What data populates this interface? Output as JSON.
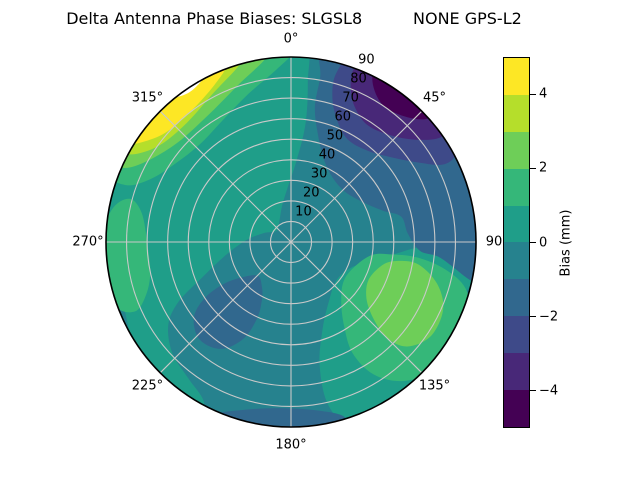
{
  "title": "Delta Antenna Phase Biases: SLGSL8          NONE GPS-L2",
  "polar": {
    "theta_labels": [
      {
        "label": "0°",
        "az": 0
      },
      {
        "label": "45°",
        "az": 45
      },
      {
        "label": "90",
        "az": 90
      },
      {
        "label": "135°",
        "az": 135
      },
      {
        "label": "180°",
        "az": 180
      },
      {
        "label": "225°",
        "az": 225
      },
      {
        "label": "270°",
        "az": 270
      },
      {
        "label": "315°",
        "az": 315
      }
    ],
    "r_labels": [
      "10",
      "20",
      "30",
      "40",
      "50",
      "60",
      "70",
      "80",
      "90"
    ],
    "r_label_angle_deg": 22.5,
    "r_max": 90,
    "grid_color": "#c9c9c9",
    "outline_color": "#000000"
  },
  "colorbar": {
    "label": "Bias (mm)",
    "vmin": -5,
    "vmax": 5,
    "ticks": [
      {
        "value": 4,
        "label": "4"
      },
      {
        "value": 2,
        "label": "2"
      },
      {
        "value": 0,
        "label": "0"
      },
      {
        "value": -2,
        "label": "−2"
      },
      {
        "value": -4,
        "label": "−4"
      }
    ],
    "segment_colors_top_to_bottom": [
      "#fde725",
      "#b5de2b",
      "#6ece58",
      "#35b779",
      "#1f9e89",
      "#26828e",
      "#31688e",
      "#3e4a89",
      "#482878",
      "#440154"
    ]
  },
  "chart_data": {
    "type": "heatmap",
    "projection": "polar-contourf",
    "title": "Delta Antenna Phase Biases: SLGSL8          NONE GPS-L2",
    "value_label": "Bias (mm)",
    "azimuth_deg_clockwise_from_north": true,
    "zenith_range": [
      0,
      90
    ],
    "levels_mm": [
      -5,
      -4,
      -3,
      -2,
      -1,
      0,
      1,
      2,
      3,
      4,
      5
    ],
    "band_colors": {
      "-5..-4": "#440154",
      "-4..-3": "#482878",
      "-3..-2": "#3e4a89",
      "-2..-1": "#31688e",
      "-1..0": "#26828e",
      "0..1": "#1f9e89",
      "1..2": "#35b779",
      "2..3": "#6ece58",
      "3..4": "#b5de2b",
      "4..5": "#fde725",
      "above_max": "#ffffff"
    },
    "background_band": {
      "band": "-1..0",
      "color": "#26828e"
    },
    "features": [
      {
        "name": "nw-positive-lobe-0to1",
        "band": "0..1",
        "color": "#1f9e89",
        "points": [
          [
            207,
            96
          ],
          [
            222,
            96
          ],
          [
            238,
            96
          ],
          [
            254,
            96
          ],
          [
            270,
            96
          ],
          [
            286,
            96
          ],
          [
            302,
            96
          ],
          [
            318,
            96
          ],
          [
            334,
            96
          ],
          [
            350,
            96
          ],
          [
            364,
            96
          ],
          [
            366,
            78
          ],
          [
            367,
            58
          ],
          [
            364,
            40
          ],
          [
            356,
            26
          ],
          [
            346,
            18
          ],
          [
            328,
            11
          ],
          [
            306,
            9
          ],
          [
            288,
            14
          ],
          [
            272,
            22
          ],
          [
            258,
            33
          ],
          [
            248,
            47
          ],
          [
            242,
            62
          ],
          [
            236,
            72
          ],
          [
            227,
            79
          ],
          [
            217,
            83
          ],
          [
            209,
            88
          ]
        ]
      },
      {
        "name": "se-positive-lobe-0to1",
        "band": "0..1",
        "color": "#1f9e89",
        "points": [
          [
            104,
            96
          ],
          [
            118,
            96
          ],
          [
            132,
            96
          ],
          [
            147,
            96
          ],
          [
            161,
            96
          ],
          [
            167,
            82
          ],
          [
            167,
            62
          ],
          [
            160,
            45
          ],
          [
            147,
            34
          ],
          [
            131,
            29
          ],
          [
            115,
            31
          ],
          [
            104,
            39
          ],
          [
            96,
            52
          ],
          [
            92,
            66
          ],
          [
            95,
            81
          ]
        ]
      },
      {
        "name": "w-rim-sliver-m1to0",
        "band": "-1..0",
        "color": "#26828e",
        "points": [
          [
            238,
            98
          ],
          [
            250,
            98
          ],
          [
            262,
            98
          ],
          [
            273,
            98
          ],
          [
            272,
            91
          ],
          [
            262,
            87
          ],
          [
            250,
            87
          ],
          [
            240,
            91
          ]
        ]
      },
      {
        "name": "e-rim-sliver-m1to0",
        "band": "-1..0",
        "color": "#26828e",
        "points": [
          [
            102,
            98
          ],
          [
            109,
            98
          ],
          [
            117,
            98
          ],
          [
            115,
            91
          ],
          [
            108,
            88
          ],
          [
            102,
            92
          ]
        ]
      },
      {
        "name": "w-rim-band-1to2",
        "band": "1..2",
        "color": "#35b779",
        "points": [
          [
            250,
            91
          ],
          [
            261,
            93
          ],
          [
            272,
            92
          ],
          [
            281,
            88
          ],
          [
            285,
            81
          ],
          [
            281,
            74
          ],
          [
            270,
            70
          ],
          [
            258,
            70
          ],
          [
            250,
            75
          ],
          [
            246,
            83
          ]
        ]
      },
      {
        "name": "nw-crescent-1to2",
        "band": "1..2",
        "color": "#35b779",
        "points": [
          [
            291,
            97
          ],
          [
            304,
            97
          ],
          [
            318,
            97
          ],
          [
            332,
            97
          ],
          [
            346,
            97
          ],
          [
            358,
            97
          ],
          [
            361,
            93
          ],
          [
            355,
            84
          ],
          [
            344,
            75
          ],
          [
            331,
            68
          ],
          [
            317,
            65
          ],
          [
            304,
            68
          ],
          [
            294,
            75
          ],
          [
            289,
            85
          ]
        ]
      },
      {
        "name": "se-ring-1to2",
        "band": "1..2",
        "color": "#35b779",
        "points": [
          [
            99,
            40
          ],
          [
            112,
            33
          ],
          [
            127,
            32
          ],
          [
            140,
            38
          ],
          [
            148,
            49
          ],
          [
            151,
            62
          ],
          [
            148,
            76
          ],
          [
            141,
            87
          ],
          [
            131,
            95
          ],
          [
            124,
            97
          ],
          [
            114,
            96
          ],
          [
            105,
            88
          ],
          [
            100,
            76
          ],
          [
            97,
            62
          ],
          [
            97,
            50
          ]
        ]
      },
      {
        "name": "nw-crescent-2to3",
        "band": "2..3",
        "color": "#6ece58",
        "points": [
          [
            298,
            97
          ],
          [
            312,
            97
          ],
          [
            326,
            97
          ],
          [
            340,
            97
          ],
          [
            354,
            97
          ],
          [
            352,
            90
          ],
          [
            342,
            81
          ],
          [
            328,
            74
          ],
          [
            313,
            73
          ],
          [
            302,
            78
          ],
          [
            295,
            86
          ],
          [
            294,
            92
          ]
        ]
      },
      {
        "name": "se-blob-2to3",
        "band": "2..3",
        "color": "#6ece58",
        "points": [
          [
            104,
            46
          ],
          [
            116,
            42
          ],
          [
            127,
            46
          ],
          [
            133,
            55
          ],
          [
            135,
            66
          ],
          [
            132,
            76
          ],
          [
            124,
            82
          ],
          [
            114,
            81
          ],
          [
            106,
            74
          ],
          [
            100,
            63
          ],
          [
            100,
            53
          ]
        ]
      },
      {
        "name": "nw-crescent-3to4",
        "band": "3..4",
        "color": "#b5de2b",
        "points": [
          [
            301,
            98
          ],
          [
            313,
            98
          ],
          [
            325,
            98
          ],
          [
            337,
            98
          ],
          [
            348,
            98
          ],
          [
            344,
            90
          ],
          [
            333,
            82
          ],
          [
            319,
            77
          ],
          [
            307,
            79
          ],
          [
            300,
            86
          ],
          [
            298,
            93
          ]
        ]
      },
      {
        "name": "nw-crescent-4to5",
        "band": "4..5",
        "color": "#fde725",
        "points": [
          [
            303,
            98
          ],
          [
            314,
            98
          ],
          [
            326,
            98
          ],
          [
            338,
            98
          ],
          [
            341,
            93
          ],
          [
            334,
            85
          ],
          [
            322,
            80
          ],
          [
            311,
            81
          ],
          [
            304,
            87
          ],
          [
            301,
            93
          ]
        ]
      },
      {
        "name": "nw-above-max-wedge",
        "band": "above_max",
        "color": "#ffffff",
        "points": [
          [
            321,
            98
          ],
          [
            328,
            98
          ],
          [
            337,
            98
          ],
          [
            334,
            92
          ],
          [
            326,
            88
          ],
          [
            320,
            92
          ]
        ]
      },
      {
        "name": "ne-negative-lobe-m2tom1",
        "band": "-2..-1",
        "color": "#31688e",
        "points": [
          [
            9,
            97
          ],
          [
            24,
            97
          ],
          [
            40,
            97
          ],
          [
            56,
            97
          ],
          [
            72,
            97
          ],
          [
            88,
            97
          ],
          [
            103,
            97
          ],
          [
            102,
            89
          ],
          [
            96,
            73
          ],
          [
            94,
            63
          ],
          [
            86,
            57
          ],
          [
            77,
            55
          ],
          [
            71,
            47
          ],
          [
            61,
            40
          ],
          [
            48,
            36
          ],
          [
            34,
            37
          ],
          [
            22,
            43
          ],
          [
            14,
            54
          ],
          [
            10,
            67
          ],
          [
            10,
            82
          ]
        ]
      },
      {
        "name": "sw-blob-m2tom1",
        "band": "-2..-1",
        "color": "#31688e",
        "points": [
          [
            213,
            26
          ],
          [
            224,
            23
          ],
          [
            233,
            28
          ],
          [
            238,
            38
          ],
          [
            237,
            50
          ],
          [
            232,
            60
          ],
          [
            223,
            65
          ],
          [
            213,
            62
          ],
          [
            206,
            52
          ],
          [
            204,
            40
          ],
          [
            207,
            31
          ]
        ]
      },
      {
        "name": "s-rim-band-m2tom1",
        "band": "-2..-1",
        "color": "#31688e",
        "points": [
          [
            164,
            97
          ],
          [
            176,
            97
          ],
          [
            189,
            97
          ],
          [
            202,
            97
          ],
          [
            203,
            91
          ],
          [
            196,
            85
          ],
          [
            184,
            81
          ],
          [
            171,
            83
          ],
          [
            163,
            89
          ]
        ]
      },
      {
        "name": "s-rim-sliver-m3tom2",
        "band": "-3..-2",
        "color": "#3e4a89",
        "points": [
          [
            176,
            98
          ],
          [
            184,
            98
          ],
          [
            192,
            98
          ],
          [
            190,
            92
          ],
          [
            183,
            90
          ],
          [
            177,
            92
          ]
        ]
      },
      {
        "name": "ne-lobe-m3tom2",
        "band": "-3..-2",
        "color": "#3e4a89",
        "points": [
          [
            19,
            97
          ],
          [
            31,
            97
          ],
          [
            44,
            97
          ],
          [
            57,
            97
          ],
          [
            62,
            91
          ],
          [
            63,
            83
          ],
          [
            58,
            73
          ],
          [
            50,
            64
          ],
          [
            40,
            58
          ],
          [
            29,
            57
          ],
          [
            21,
            63
          ],
          [
            16,
            73
          ],
          [
            15,
            85
          ]
        ]
      },
      {
        "name": "ne-lobe-m4tom3",
        "band": "-4..-3",
        "color": "#482878",
        "points": [
          [
            23,
            97
          ],
          [
            34,
            97
          ],
          [
            45,
            97
          ],
          [
            53,
            97
          ],
          [
            55,
            89
          ],
          [
            51,
            79
          ],
          [
            43,
            71
          ],
          [
            33,
            68
          ],
          [
            25,
            73
          ],
          [
            21,
            81
          ],
          [
            20,
            90
          ]
        ]
      },
      {
        "name": "ne-core-m5tom4",
        "band": "-5..-4",
        "color": "#440154",
        "points": [
          [
            28,
            97
          ],
          [
            37,
            97
          ],
          [
            46,
            97
          ],
          [
            48,
            90
          ],
          [
            43,
            83
          ],
          [
            35,
            80
          ],
          [
            29,
            84
          ],
          [
            26,
            91
          ]
        ]
      }
    ]
  }
}
